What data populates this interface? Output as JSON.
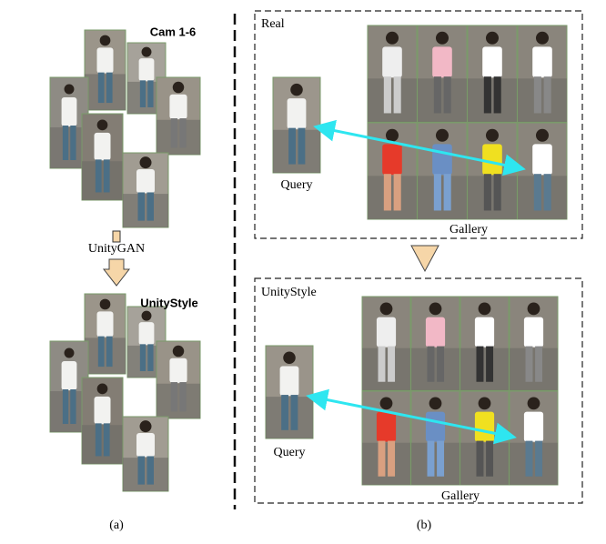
{
  "panel_a": {
    "top_label": "Cam 1-6",
    "arrow_label": "UnityGAN",
    "bottom_label": "UnityStyle",
    "caption": "(a)"
  },
  "panel_b": {
    "real": {
      "title": "Real",
      "query_label": "Query",
      "gallery_label": "Gallery"
    },
    "unitystyle": {
      "title": "UnityStyle",
      "query_label": "Query",
      "gallery_label": "Gallery"
    },
    "caption": "(b)"
  }
}
